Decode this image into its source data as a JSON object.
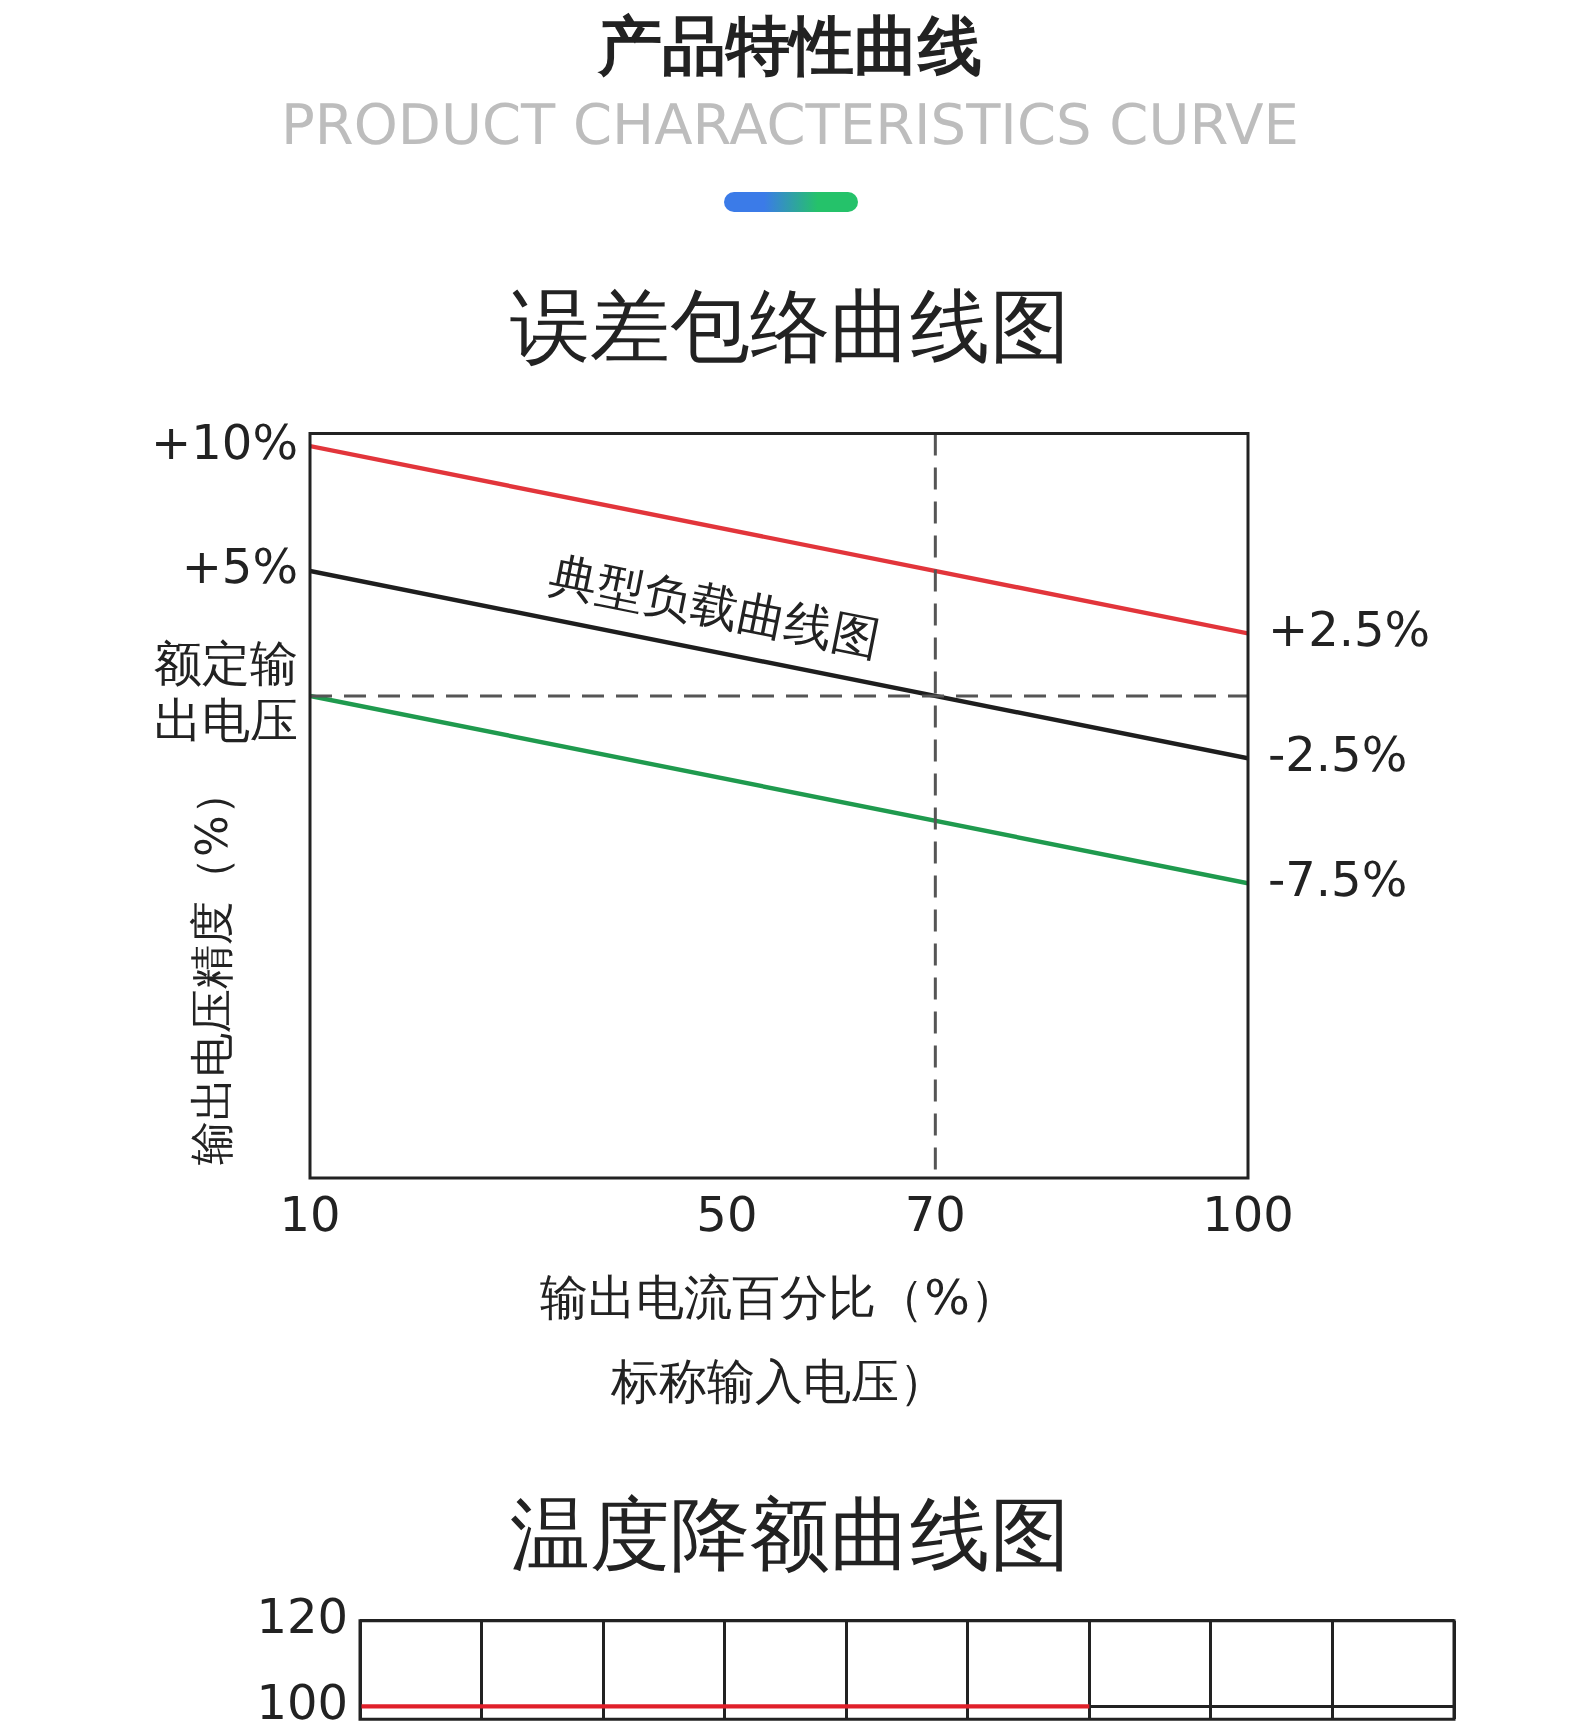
{
  "chart_data": [
    {
      "type": "other",
      "title": "产品特性曲线",
      "subtitle": "PRODUCT CHARACTERISTICS CURVE"
    },
    {
      "type": "line",
      "title": "误差包络曲线图",
      "xlabel": "输出电流百分比（%）",
      "ylabel": "输出电压精度（%）",
      "x": [
        10,
        100
      ],
      "xlim": [
        10,
        100
      ],
      "xticks": [
        10,
        50,
        70,
        100
      ],
      "ylim": [
        -19.3,
        10.5
      ],
      "yticks": [
        {
          "value": 10,
          "label": "+10%"
        },
        {
          "value": 5,
          "label": "+5%"
        },
        {
          "value": 0,
          "label": "额定输出电压"
        }
      ],
      "grid": false,
      "series": [
        {
          "color": "#e2353b",
          "values": [
            10,
            2.5
          ],
          "value_labels": [
            null,
            "+2.5%"
          ]
        },
        {
          "color": "#1e1e1e",
          "values": [
            5,
            -2.5
          ],
          "value_labels": [
            null,
            "-2.5%"
          ]
        },
        {
          "color": "#1f9a4e",
          "values": [
            0,
            -7.5
          ],
          "value_labels": [
            null,
            "-7.5%"
          ]
        }
      ],
      "ref_lines": [
        {
          "axis": "y",
          "value": 0,
          "line_style": "dashed",
          "color": "#555555"
        },
        {
          "axis": "x",
          "value": 70,
          "line_style": "dashed",
          "color": "#555555"
        }
      ],
      "annotations": [
        {
          "text": "典型负载曲线图",
          "x": 48,
          "y": 1.83
        },
        "标称输入电压）"
      ]
    },
    {
      "type": "line",
      "title": "温度降额曲线图",
      "categories": [
        null,
        null,
        null,
        null,
        null,
        null,
        null,
        null,
        null,
        null
      ],
      "ylim": [
        97,
        120
      ],
      "yticks": [
        100,
        120
      ],
      "grid": true,
      "tick_labels": "y",
      "series": [
        {
          "color": "#e0202a",
          "values": [
            100,
            100,
            100,
            100,
            100,
            100,
            100,
            null,
            null,
            null
          ]
        }
      ]
    }
  ]
}
